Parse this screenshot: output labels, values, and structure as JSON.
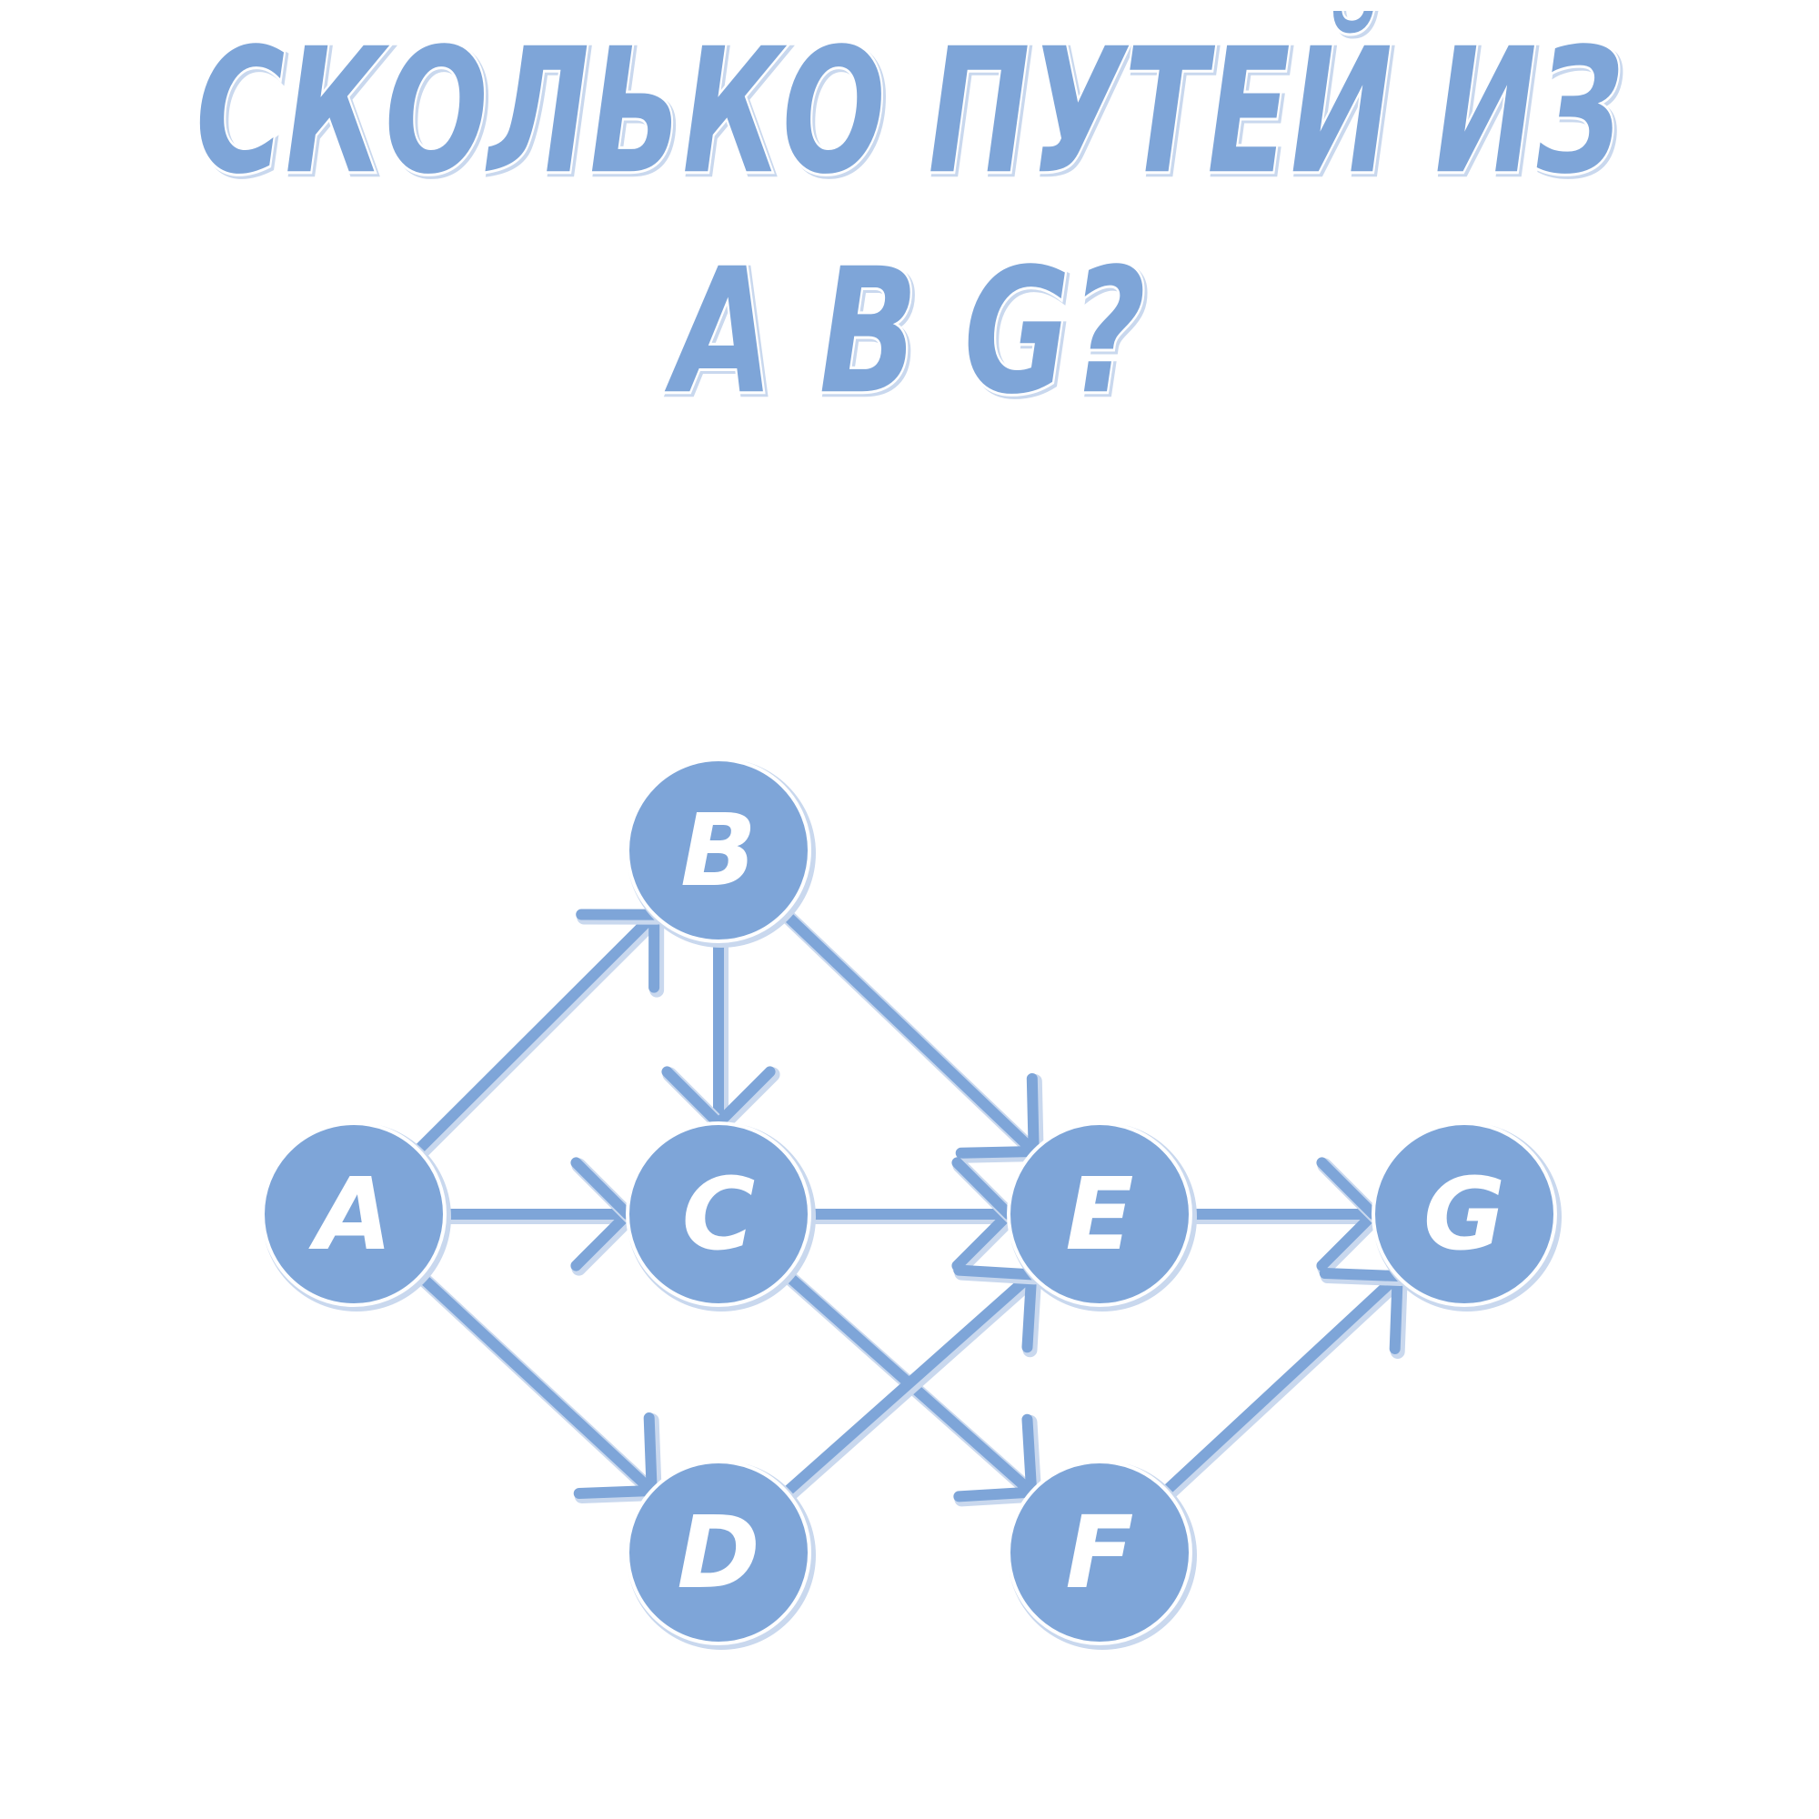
{
  "title": {
    "line1": "СКОЛЬКО ПУТЕЙ ИЗ",
    "line2": "A B G?"
  },
  "nodes": [
    {
      "label": "A"
    },
    {
      "label": "B"
    },
    {
      "label": "C"
    },
    {
      "label": "D"
    },
    {
      "label": "E"
    },
    {
      "label": "F"
    },
    {
      "label": "G"
    }
  ]
}
